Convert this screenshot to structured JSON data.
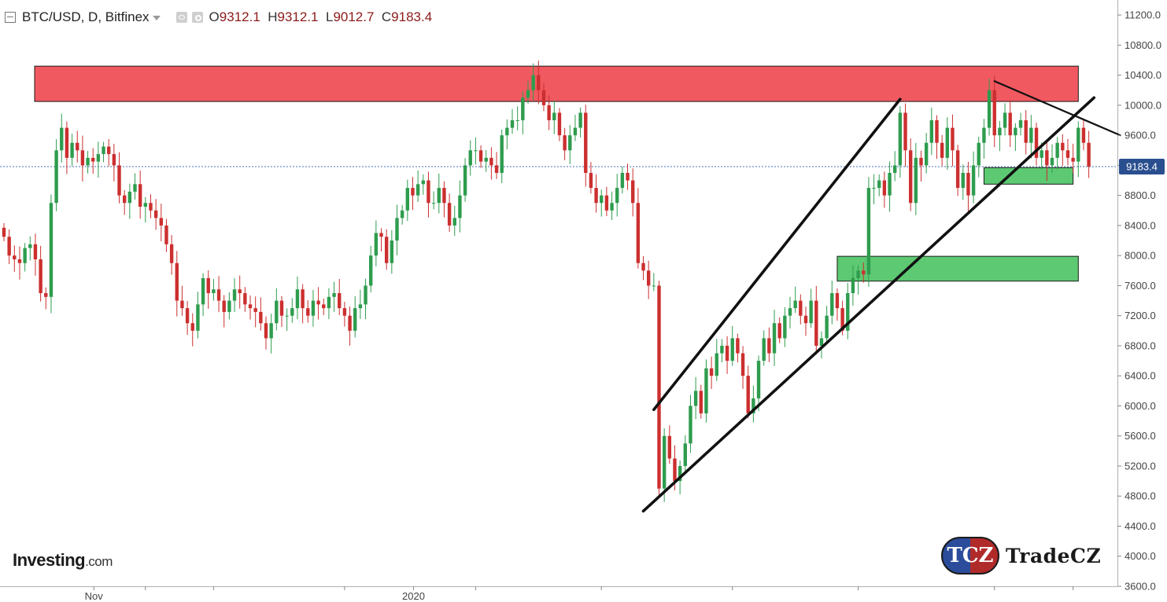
{
  "header": {
    "symbol": "BTC/USD, D, Bitfinex",
    "open_label": "O",
    "open": "9312.1",
    "high_label": "H",
    "high": "9312.1",
    "low_label": "L",
    "low": "9012.7",
    "close_label": "C",
    "close": "9183.4"
  },
  "branding": {
    "investing": "Investing",
    "investing_suffix": ".com",
    "tcz_badge": "TCZ",
    "tcz_name": "TradeCZ"
  },
  "chart_data": {
    "type": "candlestick",
    "title": "",
    "xlabel": "",
    "ylabel": "",
    "ylim": [
      3600,
      11400
    ],
    "y_ticks": [
      "11200.0",
      "10800.0",
      "10400.0",
      "10000.0",
      "9600.0",
      "9200.0",
      "8800.0",
      "8400.0",
      "8000.0",
      "7600.0",
      "7200.0",
      "6800.0",
      "6400.0",
      "6000.0",
      "5600.0",
      "5200.0",
      "4800.0",
      "4400.0",
      "4000.0",
      "3600.0"
    ],
    "x_tick_labels": [
      {
        "label": "Nov",
        "index": 17
      },
      {
        "label": "2020",
        "index": 78
      }
    ],
    "last_price": "9183.4",
    "colors": {
      "up": "#2e9c4e",
      "down": "#cc2f2f",
      "resistance_zone": "#f0474f",
      "support_zone": "#4fc466",
      "price_line": "#4a6fb0"
    },
    "candles_close": [
      8250,
      8000,
      7950,
      7900,
      8100,
      8150,
      7950,
      7500,
      7450,
      8700,
      9400,
      9700,
      9300,
      9500,
      9400,
      9200,
      9300,
      9250,
      9350,
      9450,
      9350,
      9200,
      8800,
      8700,
      8850,
      8950,
      8650,
      8700,
      8600,
      8500,
      8400,
      8150,
      7900,
      7400,
      7300,
      7100,
      7000,
      7350,
      7700,
      7500,
      7550,
      7400,
      7250,
      7400,
      7550,
      7500,
      7350,
      7300,
      7250,
      7100,
      6900,
      7100,
      7400,
      7200,
      7200,
      7300,
      7550,
      7300,
      7200,
      7400,
      7350,
      7300,
      7450,
      7500,
      7300,
      7200,
      7000,
      7300,
      7350,
      7600,
      8000,
      8300,
      8250,
      7900,
      8200,
      8500,
      8600,
      8900,
      8800,
      8950,
      9000,
      8700,
      8700,
      8900,
      8700,
      8400,
      8500,
      8800,
      9200,
      9400,
      9400,
      9250,
      9300,
      9200,
      9100,
      9600,
      9700,
      9800,
      9800,
      10100,
      10200,
      10400,
      10200,
      10000,
      9800,
      9900,
      9600,
      9400,
      9600,
      9700,
      9900,
      9100,
      8900,
      8700,
      8800,
      8600,
      8700,
      8900,
      9100,
      9000,
      8700,
      7900,
      7800,
      7600,
      7600,
      4900,
      5600,
      5300,
      5000,
      5200,
      5500,
      6000,
      6200,
      5900,
      6500,
      6400,
      6700,
      6800,
      6600,
      6900,
      6700,
      6400,
      5900,
      6100,
      6600,
      6900,
      6700,
      7100,
      6900,
      7200,
      7300,
      7400,
      7200,
      7100,
      7400,
      6800,
      6900,
      7200,
      7500,
      7300,
      7000,
      7500,
      7700,
      7800,
      7750,
      8900,
      8900,
      9000,
      8800,
      9100,
      9200,
      9900,
      9400,
      8700,
      9300,
      9200,
      9500,
      9800,
      9500,
      9300,
      9700,
      9400,
      8900,
      9100,
      8800,
      9200,
      9500,
      9700,
      10200,
      9600,
      9700,
      9900,
      9600,
      9700,
      9800,
      9500,
      9700,
      9300,
      9400,
      9200,
      9300,
      9500,
      9400,
      9300,
      9250,
      9700,
      9500,
      9183.4
    ],
    "zones": [
      {
        "type": "resistance",
        "y_low": 10050,
        "y_high": 10520,
        "x_start": -1,
        "x_end": 205
      },
      {
        "type": "support",
        "y_low": 8950,
        "y_high": 9170,
        "x_start": 187,
        "x_end": 204
      },
      {
        "type": "support",
        "y_low": 7660,
        "y_high": 7990,
        "x_start": 159,
        "x_end": 205
      }
    ],
    "trendlines": [
      {
        "name": "lower-channel",
        "x1": 122,
        "y1": 4600,
        "x2": 208,
        "y2": 10100
      },
      {
        "name": "upper-channel",
        "x1": 124,
        "y1": 5950,
        "x2": 171,
        "y2": 10080
      },
      {
        "name": "descending-resistance",
        "x1": 189,
        "y1": 10320,
        "x2": 213,
        "y2": 9600
      }
    ]
  }
}
